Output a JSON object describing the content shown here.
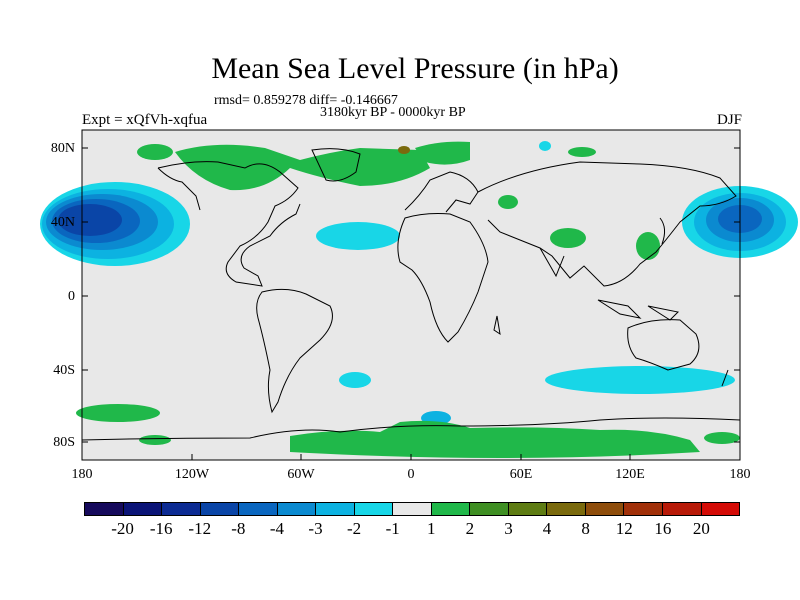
{
  "header": {
    "title": "Mean Sea Level Pressure (in hPa)",
    "stats": "rmsd= 0.859278 diff= -0.146667",
    "period": "3180kyr BP - 0000kyr BP",
    "experiment": "Expt = xQfVh-xqfua",
    "season": "DJF"
  },
  "axes": {
    "lat_labels": [
      "80N",
      "40N",
      "0",
      "40S",
      "80S"
    ],
    "lon_labels": [
      "180",
      "120W",
      "60W",
      "0",
      "60E",
      "120E",
      "180"
    ]
  },
  "colorbar": {
    "colors": [
      "#160a5c",
      "#0b1477",
      "#0c2b93",
      "#0a45a7",
      "#0a66bf",
      "#0b8ad0",
      "#0cb2e1",
      "#18d6e7",
      "#e8e8e8",
      "#20b84a",
      "#3f8f23",
      "#5e7c13",
      "#7a6a0d",
      "#8e4d0b",
      "#a13009",
      "#b81a08",
      "#d40b06"
    ],
    "labels": [
      "-20",
      "-16",
      "-12",
      "-8",
      "-4",
      "-3",
      "-2",
      "-1",
      "1",
      "2",
      "3",
      "4",
      "8",
      "12",
      "16",
      "20"
    ]
  },
  "map_colors": {
    "background": "#e8e8e8",
    "green": "#20b84a",
    "cyan": "#18d6e7",
    "light_blue": "#0cb2e1",
    "mid_blue": "#0b8ad0",
    "blue": "#0a66bf",
    "dark_blue": "#0a45a7",
    "brown": "#7a6a0d"
  }
}
